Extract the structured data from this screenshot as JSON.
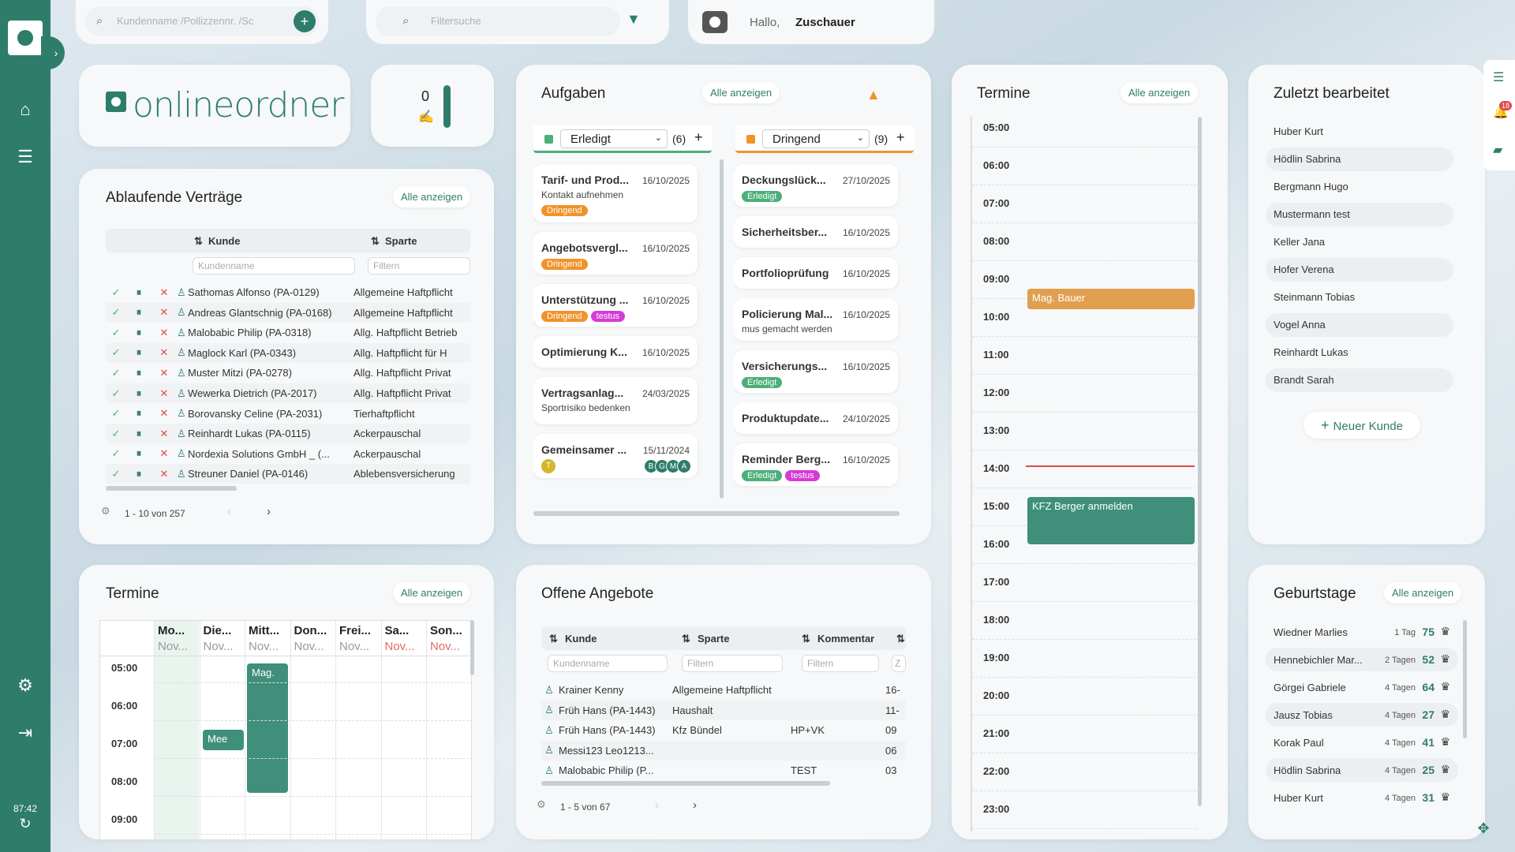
{
  "header": {
    "search_placeholder": "Kundenname /Pollizzennr. /Sc",
    "filter_placeholder": "Filtersuche",
    "greeting": "Hallo,",
    "user": "Zuschauer"
  },
  "sidebar": {
    "time": "87:42",
    "icons": [
      "home-icon",
      "list-icon",
      "gear-icon",
      "logout-icon",
      "refresh-icon"
    ]
  },
  "logo": {
    "text": "onlineordner"
  },
  "counter": {
    "value": "0"
  },
  "contracts": {
    "title": "Ablaufende Verträge",
    "all_label": "Alle anzeigen",
    "col_customer": "Kunde",
    "col_branch": "Sparte",
    "filter_customer": "Kundenname",
    "filter_branch": "Filtern",
    "rows": [
      {
        "customer": "Sathomas Alfonso (PA-0129)",
        "branch": "Allgemeine Haftpflicht"
      },
      {
        "customer": "Andreas Glantschnig (PA-0168)",
        "branch": "Allgemeine Haftpflicht"
      },
      {
        "customer": "Malobabic Philip (PA-0318)",
        "branch": "Allg. Haftpflicht Betrieb"
      },
      {
        "customer": "Maglock Karl (PA-0343)",
        "branch": "Allg. Haftpflicht für H"
      },
      {
        "customer": "Muster Mitzi (PA-0278)",
        "branch": "Allg. Haftpflicht Privat"
      },
      {
        "customer": "Wewerka Dietrich (PA-2017)",
        "branch": "Allg. Haftpflicht Privat"
      },
      {
        "customer": "Borovansky Celine (PA-2031)",
        "branch": "Tierhaftpflicht"
      },
      {
        "customer": "Reinhardt Lukas (PA-0115)",
        "branch": "Ackerpauschal"
      },
      {
        "customer": "Nordexia Solutions GmbH _ (...",
        "branch": "Ackerpauschal"
      },
      {
        "customer": "Streuner Daniel (PA-0146)",
        "branch": "Ablebensversicherung"
      }
    ],
    "pagination": "1 - 10 von 257"
  },
  "tasks": {
    "title": "Aufgaben",
    "all_label": "Alle anzeigen",
    "col1": {
      "status": "Erledigt",
      "count": "(6)",
      "color": "#4caf7a"
    },
    "col2": {
      "status": "Dringend",
      "count": "(9)",
      "color": "#f0932b"
    },
    "left": [
      {
        "title": "Tarif- und Prod...",
        "date": "16/10/2025",
        "sub": "Kontakt aufnehmen",
        "tags": [
          {
            "t": "Dringend",
            "c": "#f0932b"
          }
        ]
      },
      {
        "title": "Angebotsvergl...",
        "date": "16/10/2025",
        "sub": "",
        "tags": [
          {
            "t": "Dringend",
            "c": "#f0932b"
          }
        ]
      },
      {
        "title": "Unterstützung ...",
        "date": "16/10/2025",
        "sub": "",
        "tags": [
          {
            "t": "Dringend",
            "c": "#f0932b"
          },
          {
            "t": "testus",
            "c": "#d63bd6"
          }
        ]
      },
      {
        "title": "Optimierung K...",
        "date": "16/10/2025",
        "sub": "",
        "tags": []
      },
      {
        "title": "Vertragsanlag...",
        "date": "24/03/2025",
        "sub": "Sportrisiko bedenken",
        "tags": []
      },
      {
        "title": "Gemeinsamer ...",
        "date": "15/11/2024",
        "sub": "",
        "tags": []
      }
    ],
    "right": [
      {
        "title": "Deckungslück...",
        "date": "27/10/2025",
        "sub": "",
        "tags": [
          {
            "t": "Erledigt",
            "c": "#4caf7a"
          }
        ]
      },
      {
        "title": "Sicherheitsber...",
        "date": "16/10/2025",
        "sub": "",
        "tags": []
      },
      {
        "title": "Portfolioprüfung",
        "date": "16/10/2025",
        "sub": "",
        "tags": []
      },
      {
        "title": "Policierung Mal...",
        "date": "16/10/2025",
        "sub": "mus gemacht werden",
        "tags": []
      },
      {
        "title": "Versicherungs...",
        "date": "16/10/2025",
        "sub": "",
        "tags": [
          {
            "t": "Erledigt",
            "c": "#4caf7a"
          }
        ]
      },
      {
        "title": "Produktupdate...",
        "date": "24/10/2025",
        "sub": "",
        "tags": []
      },
      {
        "title": "Reminder Berg...",
        "date": "16/10/2025",
        "sub": "",
        "tags": [
          {
            "t": "Erledigt",
            "c": "#4caf7a"
          },
          {
            "t": "testus",
            "c": "#d63bd6"
          }
        ]
      }
    ],
    "avatars": [
      "B",
      "G",
      "M",
      "A"
    ],
    "avatar_single": "T"
  },
  "appointments": {
    "title": "Termine",
    "all_label": "Alle anzeigen",
    "hours": [
      "05:00",
      "06:00",
      "07:00",
      "08:00",
      "09:00",
      "10:00",
      "11:00",
      "12:00",
      "13:00",
      "14:00",
      "15:00",
      "16:00",
      "17:00",
      "18:00",
      "19:00",
      "20:00",
      "21:00",
      "22:00",
      "23:00"
    ],
    "events": [
      {
        "label": "Mag. Bauer",
        "color": "#e0a050"
      },
      {
        "label": "KFZ Berger anmelden",
        "color": "#3f8f7b"
      }
    ]
  },
  "recent": {
    "title": "Zuletzt bearbeitet",
    "items": [
      "Huber Kurt",
      "Hödlin Sabrina",
      "Bergmann Hugo",
      "Mustermann test",
      "Keller Jana",
      "Hofer Verena",
      "Steinmann Tobias",
      "Vogel Anna",
      "Reinhardt Lukas",
      "Brandt Sarah"
    ],
    "new_label": "Neuer Kunde"
  },
  "week": {
    "title": "Termine",
    "all_label": "Alle anzeigen",
    "days": [
      {
        "d": "Mo...",
        "s": "Nov..."
      },
      {
        "d": "Die...",
        "s": "Nov..."
      },
      {
        "d": "Mitt...",
        "s": "Nov..."
      },
      {
        "d": "Don...",
        "s": "Nov..."
      },
      {
        "d": "Frei...",
        "s": "Nov..."
      },
      {
        "d": "Sa...",
        "s": "Nov..."
      },
      {
        "d": "Son...",
        "s": "Nov..."
      }
    ],
    "hours": [
      "05:00",
      "06:00",
      "07:00",
      "08:00",
      "09:00"
    ],
    "events": [
      {
        "label": "Mag."
      },
      {
        "label": "Mee"
      }
    ]
  },
  "offers": {
    "title": "Offene Angebote",
    "col_customer": "Kunde",
    "col_branch": "Sparte",
    "col_comment": "Kommentar",
    "filter_customer": "Kundenname",
    "filter1": "Filtern",
    "filter2": "Filtern",
    "filter3": "Z",
    "rows": [
      {
        "customer": "Krainer Kenny",
        "branch": "Allgemeine Haftpflicht",
        "comment": "",
        "extra": "16-"
      },
      {
        "customer": "Früh Hans (PA-1443)",
        "branch": "Haushalt",
        "comment": "",
        "extra": "11-"
      },
      {
        "customer": "Früh Hans (PA-1443)",
        "branch": "Kfz Bündel",
        "comment": "HP+VK",
        "extra": "09"
      },
      {
        "customer": "Messi123 Leo1213...",
        "branch": "",
        "comment": "",
        "extra": "06"
      },
      {
        "customer": "Malobabic Philip (P...",
        "branch": "",
        "comment": "TEST",
        "extra": "03"
      }
    ],
    "pagination": "1 - 5 von 67"
  },
  "birthdays": {
    "title": "Geburtstage",
    "all_label": "Alle anzeigen",
    "items": [
      {
        "name": "Wiedner Marlies",
        "days": "1 Tag",
        "age": "75"
      },
      {
        "name": "Hennebichler Mar...",
        "days": "2 Tagen",
        "age": "52"
      },
      {
        "name": "Görgei Gabriele",
        "days": "4 Tagen",
        "age": "64"
      },
      {
        "name": "Jausz Tobias",
        "days": "4 Tagen",
        "age": "27"
      },
      {
        "name": "Korak Paul",
        "days": "4 Tagen",
        "age": "41"
      },
      {
        "name": "Hödlin Sabrina",
        "days": "4 Tagen",
        "age": "25"
      },
      {
        "name": "Huber Kurt",
        "days": "4 Tagen",
        "age": "31"
      }
    ]
  },
  "rightrail": {
    "badge": "18"
  }
}
